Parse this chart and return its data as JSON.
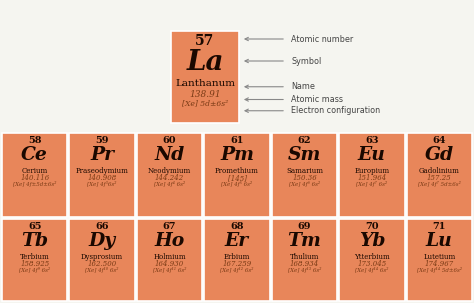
{
  "bg_color": "#f5f5f0",
  "cell_color": "#e8865a",
  "border_color": "#ffffff",
  "dark_text": "#1a0800",
  "light_text": "#7a3a15",
  "arrow_color": "#888888",
  "ann_color": "#444444",
  "legend_element": {
    "number": "57",
    "symbol": "La",
    "name": "Lanthanum",
    "mass": "138.91",
    "config": "[Xe] 5d±6s²"
  },
  "lanthanides": [
    {
      "number": "58",
      "symbol": "Ce",
      "name": "Cerium",
      "mass": "140.116",
      "config": "[Xe] 4f±5d±6s²"
    },
    {
      "number": "59",
      "symbol": "Pr",
      "name": "Praseodymium",
      "mass": "140.908",
      "config": "[Xe] 4f³6s²"
    },
    {
      "number": "60",
      "symbol": "Nd",
      "name": "Neodymium",
      "mass": "144.242",
      "config": "[Xe] 4f⁴ 6s²"
    },
    {
      "number": "61",
      "symbol": "Pm",
      "name": "Promethium",
      "mass": "[145]",
      "config": "[Xe] 4f⁵ 6s²"
    },
    {
      "number": "62",
      "symbol": "Sm",
      "name": "Samarium",
      "mass": "150.36",
      "config": "[Xe] 4f⁶ 6s²"
    },
    {
      "number": "63",
      "symbol": "Eu",
      "name": "Europium",
      "mass": "151.964",
      "config": "[Xe] 4f⁷ 6s²"
    },
    {
      "number": "64",
      "symbol": "Gd",
      "name": "Gadolinium",
      "mass": "157.25",
      "config": "[Xe] 4f⁷ 5d±6s²"
    }
  ],
  "row2": [
    {
      "number": "65",
      "symbol": "Tb",
      "name": "Terbium",
      "mass": "158.925",
      "config": "[Xe] 4f⁹ 6s²"
    },
    {
      "number": "66",
      "symbol": "Dy",
      "name": "Dysprosium",
      "mass": "162.500",
      "config": "[Xe] 4f¹⁰ 6s²"
    },
    {
      "number": "67",
      "symbol": "Ho",
      "name": "Holmium",
      "mass": "164.930",
      "config": "[Xe] 4f¹¹ 6s²"
    },
    {
      "number": "68",
      "symbol": "Er",
      "name": "Erbium",
      "mass": "167.259",
      "config": "[Xe] 4f¹² 6s²"
    },
    {
      "number": "69",
      "symbol": "Tm",
      "name": "Thulium",
      "mass": "168.934",
      "config": "[Xe] 4f¹³ 6s²"
    },
    {
      "number": "70",
      "symbol": "Yb",
      "name": "Ytterbium",
      "mass": "173.045",
      "config": "[Xe] 4f¹⁴ 6s²"
    },
    {
      "number": "71",
      "symbol": "Lu",
      "name": "Lutetium",
      "mass": "174.967",
      "config": "[Xe] 4f¹⁴ 5d±6s²"
    }
  ],
  "annotations": [
    "Atomic number",
    "Symbol",
    "Name",
    "Atomic mass",
    "Electron configuration"
  ],
  "figsize": [
    4.74,
    3.03
  ],
  "dpi": 100
}
